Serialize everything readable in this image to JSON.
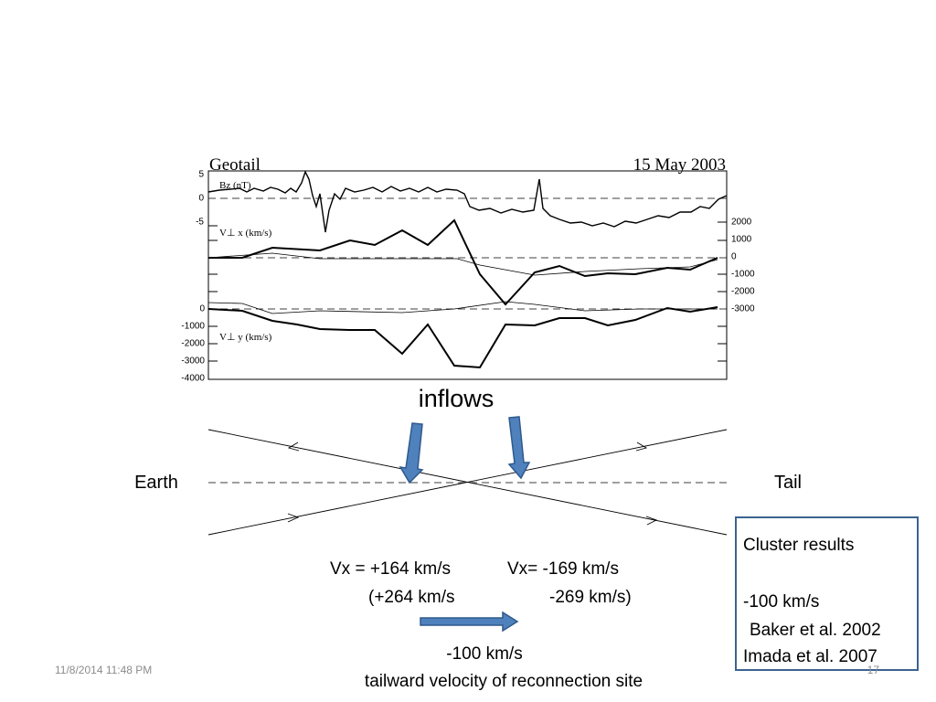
{
  "plot": {
    "title": "Geotail",
    "date": "15 May 2003",
    "bz_label": "Bz (nT)",
    "bz_ticks": [
      5,
      0,
      -5
    ],
    "vx_label": "V⊥ x (km/s)",
    "vx_ticks": [
      2000,
      1000,
      0,
      -1000,
      -2000,
      -3000
    ],
    "vy_label": "V⊥ y (km/s)",
    "vy_ticks": [
      0,
      -1000,
      -2000,
      -3000,
      -4000
    ]
  },
  "diagram": {
    "inflows": "inflows",
    "earth": "Earth",
    "tail": "Tail",
    "vx_left": "Vx = +164 km/s",
    "vx_right": "Vx= -169 km/s",
    "vx_left_alt": "(+264 km/s",
    "vx_right_alt": "-269 km/s)",
    "site_speed": "-100 km/s",
    "site_caption": "tailward velocity of reconnection site"
  },
  "cluster_box": {
    "title": "Cluster results",
    "speed": "-100 km/s",
    "refs": [
      "Baker et al. 2002",
      "Imada et al. 2007"
    ]
  },
  "footer": {
    "date": "11/8/2014 11:48 PM",
    "page": "17"
  }
}
